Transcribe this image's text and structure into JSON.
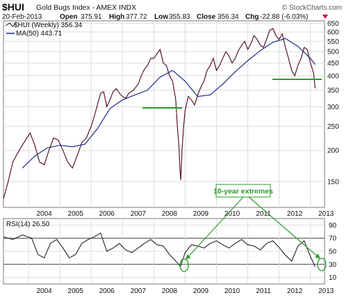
{
  "header": {
    "symbol": "$HUI",
    "name": "Gold Bugs Index - AMEX  INDX",
    "credit": "© StockCharts.com",
    "date": "20-Feb-2013",
    "open_label": "Open",
    "open": "375.91",
    "high_label": "High",
    "high": "377.72",
    "low_label": "Low",
    "low": "355.83",
    "close_label": "Close",
    "close": "356.34",
    "chg_label": "Chg",
    "chg": "-22.88 (-6.03%)"
  },
  "legend": {
    "price": "$HUI (Weekly) 356.34",
    "ma": "MA(50) 443.71",
    "rsi": "RSI(14) 26.50"
  },
  "annotation": {
    "text": "10-year extremes"
  },
  "colors": {
    "price_line": "#111111",
    "price_down": "#cc0033",
    "ma_line": "#1a2a8c",
    "annotation": "#2e9a2e",
    "grid": "#dcdcdc",
    "frame": "#777777"
  },
  "chart_data": [
    {
      "type": "line",
      "title": "$HUI Gold Bugs Index - AMEX INDX",
      "y_scale": "log",
      "ylim": [
        118,
        665
      ],
      "y_ticks": [
        150,
        200,
        250,
        300,
        350,
        400,
        450,
        500,
        550,
        600,
        650
      ],
      "x_ticks": [
        "2004",
        "2005",
        "2006",
        "2007",
        "2008",
        "2009",
        "2010",
        "2011",
        "2012",
        "2013"
      ],
      "xlim": [
        2003.2,
        2013.45
      ],
      "series": [
        {
          "name": "$HUI (Weekly)",
          "x": [
            2003.2,
            2003.35,
            2003.5,
            2003.65,
            2003.8,
            2003.95,
            2004.05,
            2004.2,
            2004.35,
            2004.5,
            2004.65,
            2004.8,
            2004.95,
            2005.1,
            2005.25,
            2005.4,
            2005.55,
            2005.7,
            2005.85,
            2006.0,
            2006.1,
            2006.2,
            2006.3,
            2006.4,
            2006.5,
            2006.6,
            2006.7,
            2006.8,
            2006.9,
            2007.0,
            2007.1,
            2007.2,
            2007.35,
            2007.5,
            2007.6,
            2007.7,
            2007.8,
            2007.9,
            2008.0,
            2008.1,
            2008.2,
            2008.3,
            2008.4,
            2008.5,
            2008.6,
            2008.7,
            2008.75,
            2008.8,
            2008.83,
            2008.86,
            2008.9,
            2008.95,
            2009.0,
            2009.1,
            2009.2,
            2009.3,
            2009.4,
            2009.5,
            2009.6,
            2009.7,
            2009.8,
            2009.9,
            2010.0,
            2010.1,
            2010.2,
            2010.3,
            2010.4,
            2010.5,
            2010.6,
            2010.7,
            2010.8,
            2010.9,
            2011.0,
            2011.1,
            2011.2,
            2011.3,
            2011.4,
            2011.5,
            2011.6,
            2011.7,
            2011.8,
            2011.9,
            2012.0,
            2012.1,
            2012.2,
            2012.3,
            2012.4,
            2012.5,
            2012.6,
            2012.7,
            2012.8,
            2012.9,
            2013.0,
            2013.1,
            2013.15
          ],
          "values": [
            128,
            150,
            180,
            195,
            210,
            225,
            235,
            210,
            180,
            175,
            200,
            225,
            220,
            200,
            180,
            170,
            190,
            215,
            225,
            250,
            275,
            305,
            340,
            345,
            300,
            320,
            345,
            355,
            340,
            330,
            325,
            340,
            350,
            370,
            400,
            425,
            440,
            470,
            470,
            490,
            510,
            450,
            440,
            400,
            380,
            320,
            250,
            210,
            170,
            152,
            200,
            250,
            290,
            330,
            320,
            305,
            335,
            360,
            380,
            420,
            440,
            470,
            420,
            440,
            470,
            500,
            480,
            450,
            470,
            505,
            530,
            550,
            510,
            540,
            580,
            560,
            530,
            520,
            560,
            610,
            620,
            580,
            560,
            590,
            520,
            470,
            420,
            400,
            440,
            470,
            520,
            510,
            450,
            410,
            356
          ]
        },
        {
          "name": "MA(50)",
          "x": [
            2003.8,
            2004.2,
            2004.6,
            2005.0,
            2005.4,
            2005.8,
            2006.2,
            2006.6,
            2007.0,
            2007.4,
            2007.8,
            2008.2,
            2008.6,
            2009.0,
            2009.4,
            2009.8,
            2010.2,
            2010.6,
            2011.0,
            2011.4,
            2011.8,
            2012.2,
            2012.6,
            2013.0,
            2013.15
          ],
          "values": [
            170,
            190,
            205,
            210,
            207,
            212,
            245,
            295,
            320,
            335,
            350,
            395,
            420,
            380,
            330,
            335,
            370,
            415,
            460,
            505,
            545,
            565,
            525,
            470,
            444
          ]
        }
      ]
    },
    {
      "type": "line",
      "title": "RSI(14)",
      "ylim": [
        0,
        100
      ],
      "y_ticks": [
        10,
        30,
        50,
        70,
        90
      ],
      "reference_lines": [
        30,
        70
      ],
      "x_ticks": [
        "2004",
        "2005",
        "2006",
        "2007",
        "2008",
        "2009",
        "2010",
        "2011",
        "2012",
        "2013"
      ],
      "xlim": [
        2003.2,
        2013.45
      ],
      "series": [
        {
          "name": "RSI(14)",
          "x": [
            2003.2,
            2003.5,
            2003.8,
            2004.1,
            2004.3,
            2004.5,
            2004.7,
            2004.9,
            2005.1,
            2005.3,
            2005.5,
            2005.7,
            2005.9,
            2006.1,
            2006.3,
            2006.5,
            2006.7,
            2006.9,
            2007.1,
            2007.3,
            2007.5,
            2007.7,
            2007.9,
            2008.1,
            2008.3,
            2008.5,
            2008.7,
            2008.85,
            2009.0,
            2009.2,
            2009.4,
            2009.6,
            2009.8,
            2010.0,
            2010.2,
            2010.4,
            2010.6,
            2010.8,
            2011.0,
            2011.2,
            2011.4,
            2011.6,
            2011.8,
            2012.0,
            2012.2,
            2012.4,
            2012.6,
            2012.8,
            2013.0,
            2013.15
          ],
          "values": [
            72,
            68,
            75,
            70,
            45,
            40,
            62,
            68,
            55,
            40,
            45,
            62,
            68,
            72,
            78,
            50,
            55,
            62,
            52,
            48,
            55,
            62,
            68,
            60,
            58,
            45,
            35,
            27,
            48,
            60,
            58,
            55,
            62,
            66,
            60,
            55,
            62,
            68,
            60,
            58,
            52,
            62,
            66,
            56,
            44,
            35,
            58,
            66,
            42,
            26.5
          ]
        }
      ]
    }
  ]
}
